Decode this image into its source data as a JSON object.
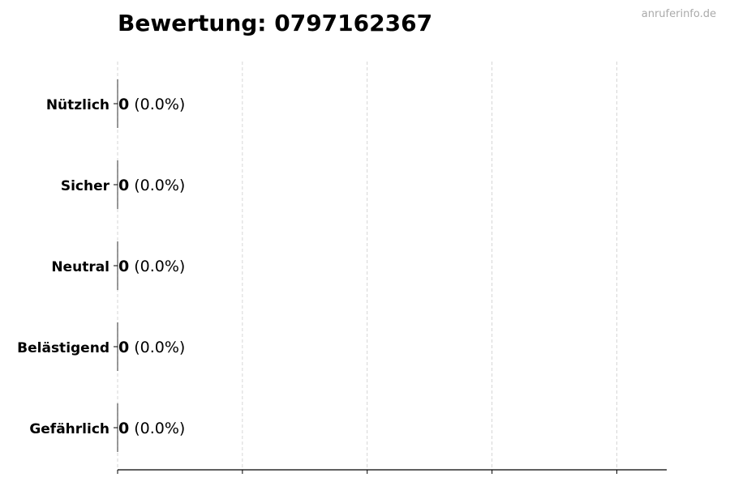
{
  "watermark": "anruferinfo.de",
  "chart_data": {
    "type": "bar",
    "orientation": "horizontal",
    "title": "Bewertung: 0797162367",
    "xlabel": "",
    "ylabel": "",
    "categories": [
      "Nützlich",
      "Sicher",
      "Neutral",
      "Belästigend",
      "Gefährlich"
    ],
    "values": [
      0,
      0,
      0,
      0,
      0
    ],
    "data_labels": [
      {
        "count": "0",
        "percent": "(0.0%)"
      },
      {
        "count": "0",
        "percent": "(0.0%)"
      },
      {
        "count": "0",
        "percent": "(0.0%)"
      },
      {
        "count": "0",
        "percent": "(0.0%)"
      },
      {
        "count": "0",
        "percent": "(0.0%)"
      }
    ],
    "xlim": [
      0,
      4.4
    ],
    "xticks": [
      0,
      1,
      2,
      3,
      4
    ],
    "xtick_labels_shown": false,
    "grid": "x-dashed",
    "colors": {
      "bar_edge": "#000000",
      "grid": "#cccccc",
      "axis": "#000000"
    }
  }
}
